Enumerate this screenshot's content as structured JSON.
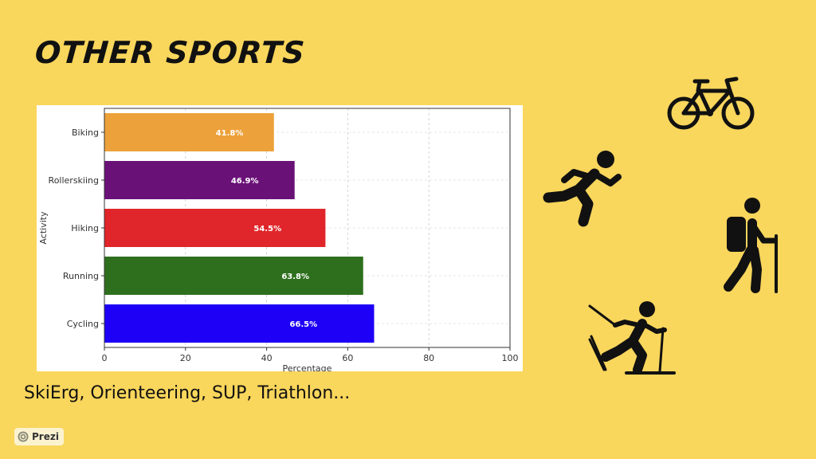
{
  "slide": {
    "title": "OTHER SPORTS",
    "footer_text": "SkiErg, Orienteering, SUP, Triathlon...",
    "badge_label": "Prezi"
  },
  "icons": [
    "bicycle-icon",
    "running-person-icon",
    "hiker-icon",
    "cross-country-skier-icon",
    "prezi-logo-icon"
  ],
  "chart_data": {
    "type": "bar",
    "orientation": "horizontal",
    "categories": [
      "Biking",
      "Rollerskiing",
      "Hiking",
      "Running",
      "Cycling"
    ],
    "values": [
      41.8,
      46.9,
      54.5,
      63.8,
      66.5
    ],
    "value_labels": [
      "41.8%",
      "46.9%",
      "54.5%",
      "63.8%",
      "66.5%"
    ],
    "colors": [
      "#EDA13A",
      "#6A1178",
      "#E0262A",
      "#2E6F1E",
      "#1D00F5"
    ],
    "xlabel": "Percentage",
    "ylabel": "Activity",
    "xlim": [
      0,
      100
    ],
    "xticks": [
      "0",
      "20",
      "40",
      "60",
      "80",
      "100"
    ],
    "grid": true
  }
}
